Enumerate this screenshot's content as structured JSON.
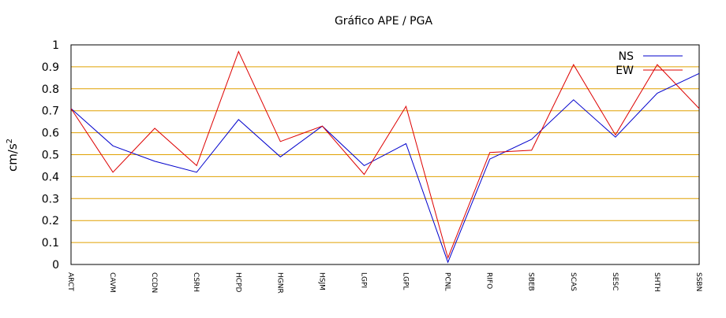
{
  "chart_data": {
    "type": "line",
    "title": "Gráfico  APE / PGA",
    "ylabel": "cm/s",
    "ylabel_superscript": "2",
    "xlabel": "",
    "categories": [
      "ARCT",
      "CAVM",
      "CCDN",
      "CSRH",
      "HCPD",
      "HGNR",
      "HSJM",
      "LGPI",
      "LGPL",
      "PCNL",
      "RIFO",
      "SBEB",
      "SCAS",
      "SESC",
      "SHTH",
      "SSBN"
    ],
    "ylim": [
      0,
      1
    ],
    "yticks": [
      "0",
      "0.1",
      "0.2",
      "0.3",
      "0.4",
      "0.5",
      "0.6",
      "0.7",
      "0.8",
      "0.9",
      "1"
    ],
    "grid": "horizontal",
    "legend_position": "top-right",
    "series": [
      {
        "name": "NS",
        "color": "#0000cc",
        "values": [
          0.71,
          0.54,
          0.47,
          0.42,
          0.66,
          0.49,
          0.63,
          0.45,
          0.55,
          0.01,
          0.48,
          0.57,
          0.75,
          0.58,
          0.78,
          0.87
        ]
      },
      {
        "name": "EW",
        "color": "#dd0000",
        "values": [
          0.71,
          0.42,
          0.62,
          0.45,
          0.97,
          0.56,
          0.63,
          0.41,
          0.72,
          0.03,
          0.51,
          0.52,
          0.91,
          0.59,
          0.91,
          0.71
        ]
      }
    ],
    "colors": {
      "grid": "#e0a000",
      "axis": "#000000"
    }
  }
}
